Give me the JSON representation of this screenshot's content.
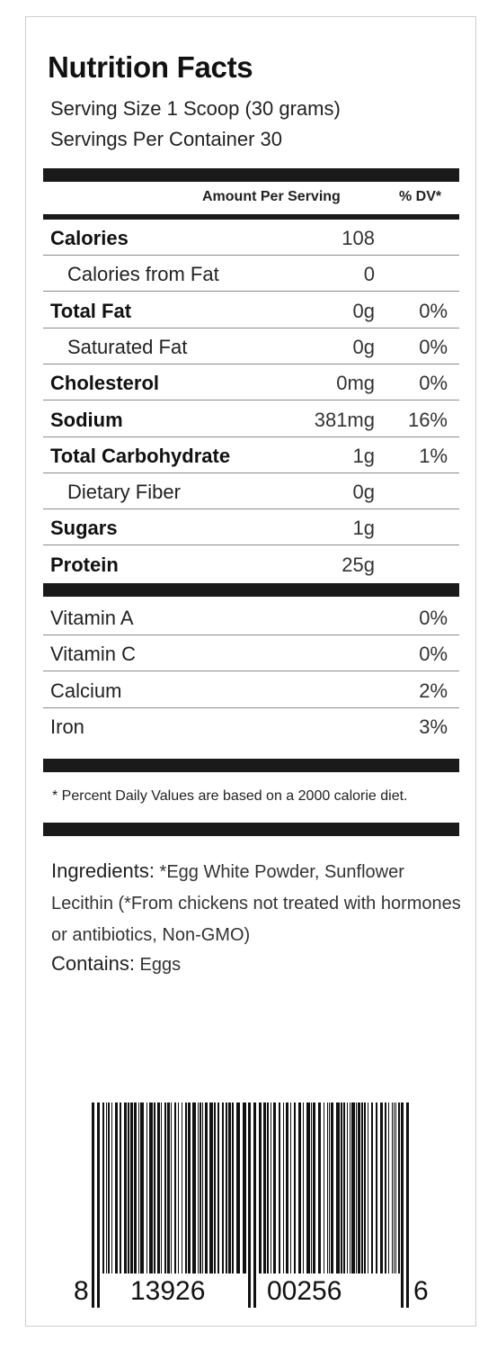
{
  "label": {
    "title": "Nutrition Facts",
    "serving_size": "Serving Size 1 Scoop (30 grams)",
    "servings_per_container": "Servings Per Container 30",
    "header_amount": "Amount Per Serving",
    "header_dv": "% DV*",
    "nutrients": [
      {
        "name": "Calories",
        "amount": "108",
        "dv": "",
        "bold": true,
        "indent": false
      },
      {
        "name": "Calories from Fat",
        "amount": "0",
        "dv": "",
        "bold": false,
        "indent": true
      },
      {
        "name": "Total Fat",
        "amount": "0g",
        "dv": "0%",
        "bold": true,
        "indent": false
      },
      {
        "name": "Saturated Fat",
        "amount": "0g",
        "dv": "0%",
        "bold": false,
        "indent": true
      },
      {
        "name": "Cholesterol",
        "amount": "0mg",
        "dv": "0%",
        "bold": true,
        "indent": false
      },
      {
        "name": "Sodium",
        "amount": "381mg",
        "dv": "16%",
        "bold": true,
        "indent": false
      },
      {
        "name": "Total Carbohydrate",
        "amount": "1g",
        "dv": "1%",
        "bold": true,
        "indent": false
      },
      {
        "name": "Dietary Fiber",
        "amount": "0g",
        "dv": "",
        "bold": false,
        "indent": true
      },
      {
        "name": "Sugars",
        "amount": "1g",
        "dv": "",
        "bold": true,
        "indent": false
      },
      {
        "name": "Protein",
        "amount": "25g",
        "dv": "",
        "bold": true,
        "indent": false
      }
    ],
    "vitamins": [
      {
        "name": "Vitamin A",
        "dv": "0%"
      },
      {
        "name": "Vitamin C",
        "dv": "0%"
      },
      {
        "name": "Calcium",
        "dv": "2%"
      },
      {
        "name": "Iron",
        "dv": "3%"
      }
    ],
    "footnote": "* Percent Daily Values are based on a 2000 calorie diet.",
    "ingredients_label": "Ingredients:",
    "ingredients_text": "*Egg White Powder, Sunflower Lecithin (*From chickens not treated with hormones or antibiotics, Non-GMO)",
    "contains_label": "Contains:",
    "contains_text": "Eggs"
  },
  "barcode": {
    "digit_first": "8",
    "group_left": "13926",
    "group_right": "00256",
    "digit_last": "6"
  }
}
